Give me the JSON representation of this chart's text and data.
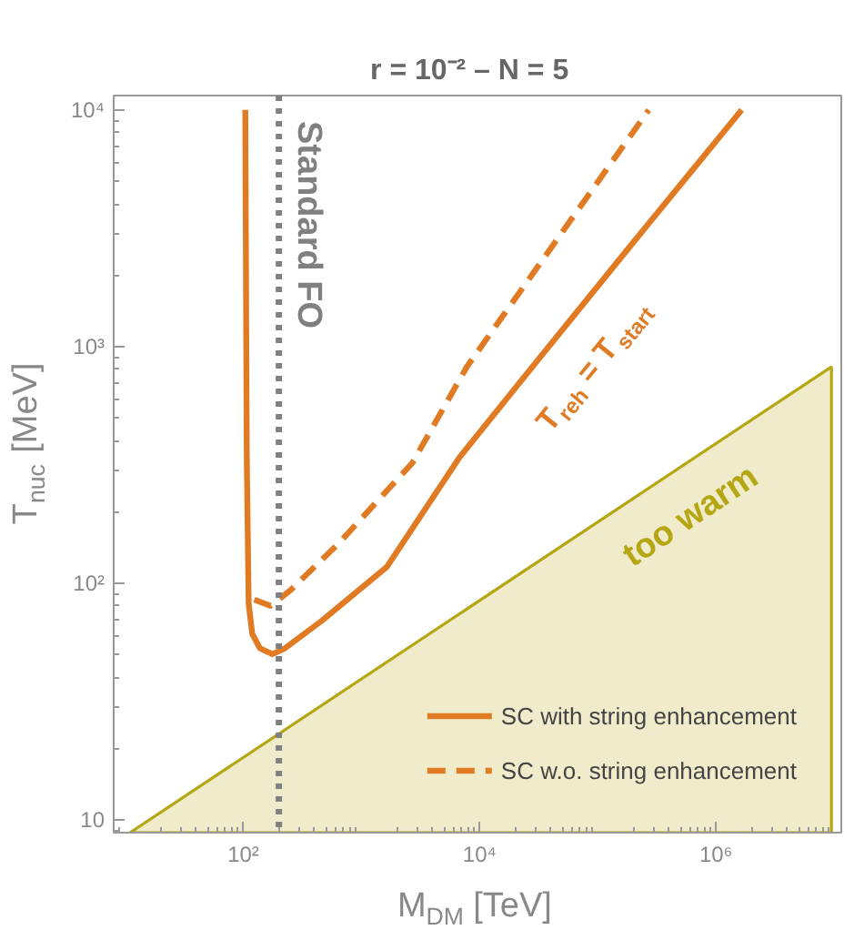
{
  "chart_data": {
    "type": "line",
    "title": "r = 10⁻²  –  N = 5",
    "xlabel": "M$_{DM}$ [TeV]",
    "ylabel": "T$_{nuc}$ [MeV]",
    "log": "xy",
    "xlim": [
      8,
      11500000
    ],
    "ylim": [
      8.8,
      11500
    ],
    "xticks": [
      {
        "value": 100,
        "label": "10²"
      },
      {
        "value": 10000,
        "label": "10⁴"
      },
      {
        "value": 1000000,
        "label": "10⁶"
      }
    ],
    "yticks": [
      10,
      {
        "value": 100,
        "label": "10²"
      },
      {
        "value": 1000,
        "label": "10³"
      },
      {
        "value": 10000,
        "label": "10⁴"
      }
    ],
    "legend": "bottom right",
    "series": [
      {
        "type": "area",
        "color": "#b5a614",
        "x": [
          11,
          9500000
        ],
        "values": [
          8.8,
          820
        ]
      },
      {
        "name": "SC with string enhancement",
        "color": "#e07b24",
        "line_style": "solid",
        "x": [
          104,
          106,
          107,
          111,
          119,
          138,
          176,
          226,
          458,
          1640,
          6770,
          28000,
          210000,
          1650000
        ],
        "values": [
          10000,
          1000,
          340,
          82,
          61,
          53,
          50,
          53,
          69,
          117,
          340,
          820,
          2840,
          10000
        ]
      },
      {
        "name": "SC w.o. string enhancement",
        "color": "#e07b24",
        "line_style": "dashed",
        "x": [
          124,
          170,
          250,
          650,
          2700,
          7800,
          270000
        ],
        "values": [
          85,
          80,
          93,
          148,
          322,
          820,
          10000
        ]
      }
    ],
    "ref_lines": [
      {
        "axis": "x",
        "value": 200,
        "label": "Standard FO",
        "color": "#808080",
        "line_style": "dotted"
      }
    ],
    "annotations": [
      "T$_{reh}$ = T$_{start}$",
      "too warm"
    ]
  }
}
